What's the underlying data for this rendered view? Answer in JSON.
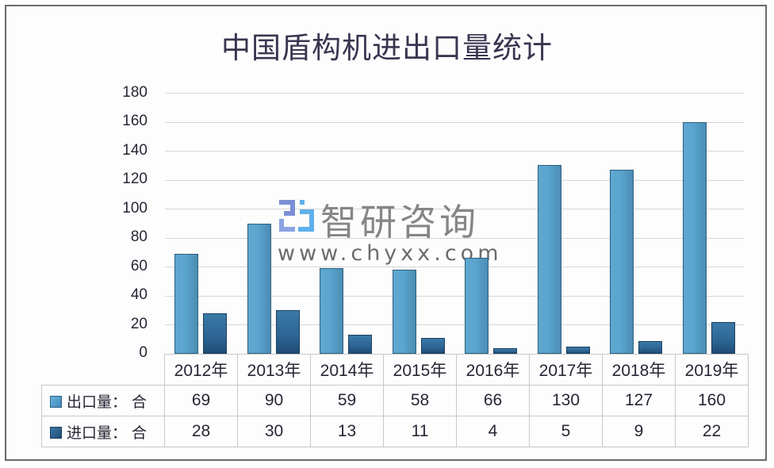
{
  "chart_data": {
    "type": "bar",
    "title": "中国盾构机进出口量统计",
    "xlabel": "",
    "ylabel": "",
    "ylim": [
      0,
      180
    ],
    "yticks": [
      "180",
      "160",
      "140",
      "120",
      "100",
      "80",
      "60",
      "40",
      "20",
      "0"
    ],
    "grid": true,
    "legend_position": "data-table-left",
    "categories": [
      "2012年",
      "2013年",
      "2014年",
      "2015年",
      "2016年",
      "2017年",
      "2018年",
      "2019年"
    ],
    "series": [
      {
        "name": "出口量：台",
        "label": "出口量： 合",
        "color": "#5aa6d0",
        "values": [
          69,
          90,
          59,
          58,
          66,
          130,
          127,
          160
        ]
      },
      {
        "name": "进口量：台",
        "label": "进口量： 合",
        "color": "#2d6594",
        "values": [
          28,
          30,
          13,
          11,
          4,
          5,
          9,
          22
        ]
      }
    ],
    "value_strings": {
      "export": [
        "69",
        "90",
        "59",
        "58",
        "66",
        "130",
        "127",
        "160"
      ],
      "import": [
        "28",
        "30",
        "13",
        "11",
        "4",
        "5",
        "9",
        "22"
      ]
    }
  },
  "watermark": {
    "brand": "智研咨询",
    "url": "www.chyxx.com",
    "logo_icon": "chyxx-logo-icon"
  }
}
